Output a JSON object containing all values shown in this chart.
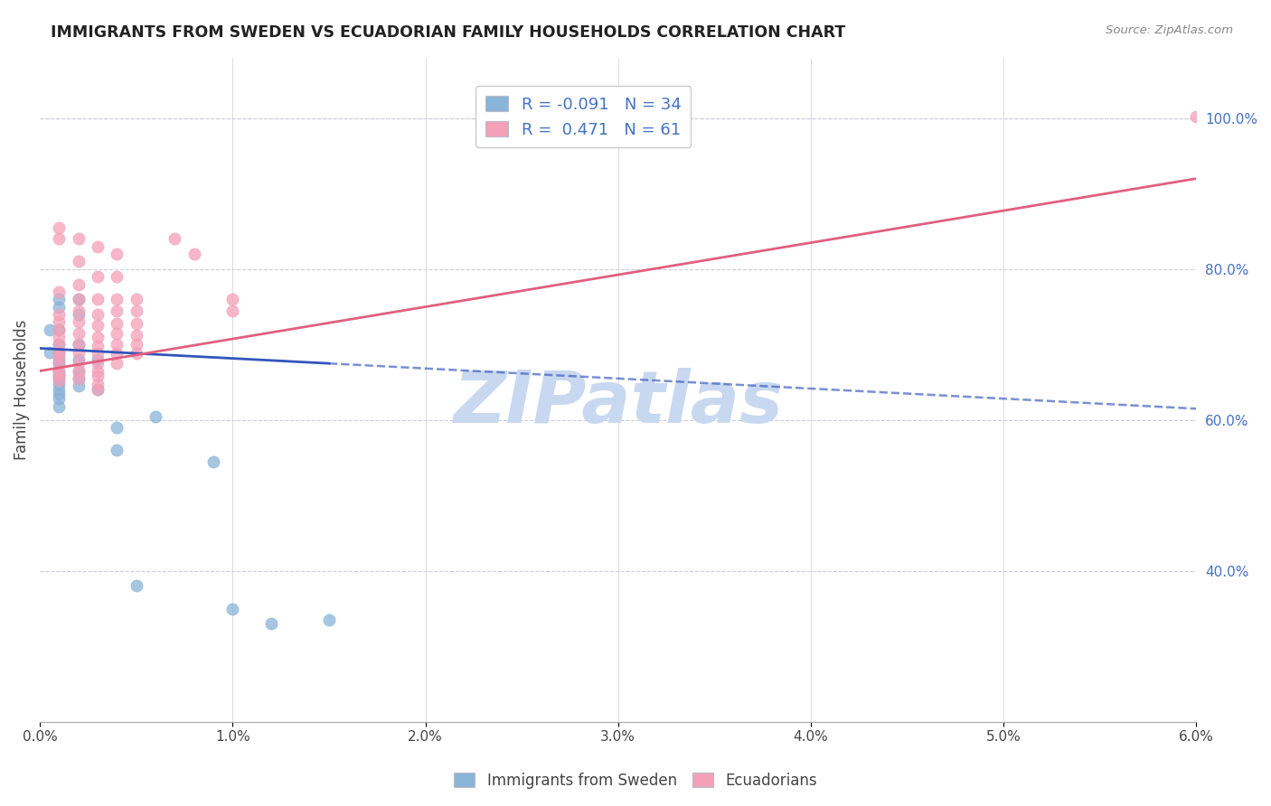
{
  "title": "IMMIGRANTS FROM SWEDEN VS ECUADORIAN FAMILY HOUSEHOLDS CORRELATION CHART",
  "source": "Source: ZipAtlas.com",
  "ylabel": "Family Households",
  "xlim": [
    0.0,
    0.06
  ],
  "ylim": [
    0.2,
    1.08
  ],
  "xtick_vals": [
    0.0,
    0.01,
    0.02,
    0.03,
    0.04,
    0.05,
    0.06
  ],
  "xtick_labels": [
    "0.0%",
    "1.0%",
    "2.0%",
    "3.0%",
    "4.0%",
    "5.0%",
    "6.0%"
  ],
  "ytick_vals_right": [
    0.4,
    0.6,
    0.8,
    1.0
  ],
  "ytick_labels_right": [
    "40.0%",
    "60.0%",
    "80.0%",
    "100.0%"
  ],
  "watermark": "ZIPatlas",
  "legend_labels_bottom": [
    "Immigrants from Sweden",
    "Ecuadorians"
  ],
  "sweden_color": "#8ab4d8",
  "ecuador_color": "#f4a0b8",
  "sweden_line_color": "#3355bb",
  "ecuador_line_color": "#e06080",
  "background_color": "#ffffff",
  "grid_color": "#ccccdd",
  "watermark_color": "#c8d8f0",
  "sweden_scatter": [
    [
      0.0005,
      0.69
    ],
    [
      0.0005,
      0.72
    ],
    [
      0.001,
      0.68
    ],
    [
      0.001,
      0.75
    ],
    [
      0.001,
      0.76
    ],
    [
      0.001,
      0.72
    ],
    [
      0.001,
      0.7
    ],
    [
      0.001,
      0.69
    ],
    [
      0.001,
      0.675
    ],
    [
      0.001,
      0.665
    ],
    [
      0.001,
      0.66
    ],
    [
      0.001,
      0.655
    ],
    [
      0.001,
      0.648
    ],
    [
      0.001,
      0.64
    ],
    [
      0.001,
      0.635
    ],
    [
      0.001,
      0.628
    ],
    [
      0.001,
      0.618
    ],
    [
      0.002,
      0.76
    ],
    [
      0.002,
      0.74
    ],
    [
      0.002,
      0.7
    ],
    [
      0.002,
      0.68
    ],
    [
      0.002,
      0.665
    ],
    [
      0.002,
      0.655
    ],
    [
      0.002,
      0.645
    ],
    [
      0.003,
      0.68
    ],
    [
      0.003,
      0.64
    ],
    [
      0.004,
      0.59
    ],
    [
      0.004,
      0.56
    ],
    [
      0.005,
      0.38
    ],
    [
      0.006,
      0.605
    ],
    [
      0.009,
      0.545
    ],
    [
      0.01,
      0.35
    ],
    [
      0.012,
      0.33
    ],
    [
      0.015,
      0.335
    ]
  ],
  "ecuador_scatter": [
    [
      0.001,
      0.855
    ],
    [
      0.001,
      0.84
    ],
    [
      0.001,
      0.77
    ],
    [
      0.001,
      0.74
    ],
    [
      0.001,
      0.73
    ],
    [
      0.001,
      0.72
    ],
    [
      0.001,
      0.71
    ],
    [
      0.001,
      0.7
    ],
    [
      0.001,
      0.69
    ],
    [
      0.001,
      0.685
    ],
    [
      0.001,
      0.675
    ],
    [
      0.001,
      0.665
    ],
    [
      0.001,
      0.66
    ],
    [
      0.001,
      0.652
    ],
    [
      0.002,
      0.84
    ],
    [
      0.002,
      0.81
    ],
    [
      0.002,
      0.78
    ],
    [
      0.002,
      0.76
    ],
    [
      0.002,
      0.745
    ],
    [
      0.002,
      0.73
    ],
    [
      0.002,
      0.715
    ],
    [
      0.002,
      0.7
    ],
    [
      0.002,
      0.69
    ],
    [
      0.002,
      0.675
    ],
    [
      0.002,
      0.665
    ],
    [
      0.002,
      0.655
    ],
    [
      0.003,
      0.83
    ],
    [
      0.003,
      0.79
    ],
    [
      0.003,
      0.76
    ],
    [
      0.003,
      0.74
    ],
    [
      0.003,
      0.725
    ],
    [
      0.003,
      0.71
    ],
    [
      0.003,
      0.698
    ],
    [
      0.003,
      0.688
    ],
    [
      0.003,
      0.675
    ],
    [
      0.003,
      0.665
    ],
    [
      0.003,
      0.658
    ],
    [
      0.003,
      0.648
    ],
    [
      0.003,
      0.64
    ],
    [
      0.004,
      0.82
    ],
    [
      0.004,
      0.79
    ],
    [
      0.004,
      0.76
    ],
    [
      0.004,
      0.745
    ],
    [
      0.004,
      0.728
    ],
    [
      0.004,
      0.715
    ],
    [
      0.004,
      0.7
    ],
    [
      0.004,
      0.688
    ],
    [
      0.004,
      0.675
    ],
    [
      0.005,
      0.76
    ],
    [
      0.005,
      0.745
    ],
    [
      0.005,
      0.728
    ],
    [
      0.005,
      0.712
    ],
    [
      0.005,
      0.7
    ],
    [
      0.005,
      0.688
    ],
    [
      0.007,
      0.84
    ],
    [
      0.008,
      0.82
    ],
    [
      0.01,
      0.76
    ],
    [
      0.01,
      0.745
    ],
    [
      0.06,
      1.002
    ]
  ],
  "sweden_line": {
    "x0": 0.0,
    "y0": 0.695,
    "x1": 0.06,
    "y1": 0.615
  },
  "sweden_line_solid_end": 0.015,
  "ecuador_line": {
    "x0": 0.0,
    "y0": 0.665,
    "x1": 0.06,
    "y1": 0.92
  }
}
